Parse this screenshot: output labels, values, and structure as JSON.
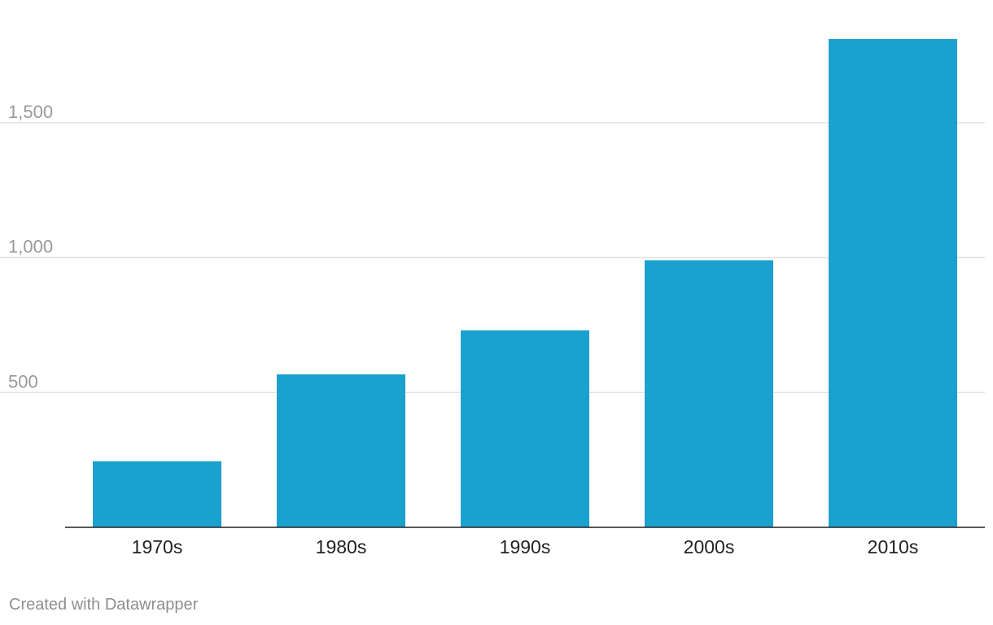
{
  "chart_data": {
    "type": "bar",
    "categories": [
      "1970s",
      "1980s",
      "1990s",
      "2000s",
      "2010s"
    ],
    "values": [
      245,
      567,
      730,
      990,
      1810
    ],
    "ylim": [
      0,
      1810
    ],
    "yticks": [
      500,
      1000,
      1500
    ],
    "ytick_labels": [
      "500",
      "1,000",
      "1,500"
    ],
    "grid": true,
    "title": "",
    "xlabel": "",
    "ylabel": "",
    "bar_color": "#1aa1cd"
  },
  "footer": {
    "credit": "Created with Datawrapper"
  }
}
